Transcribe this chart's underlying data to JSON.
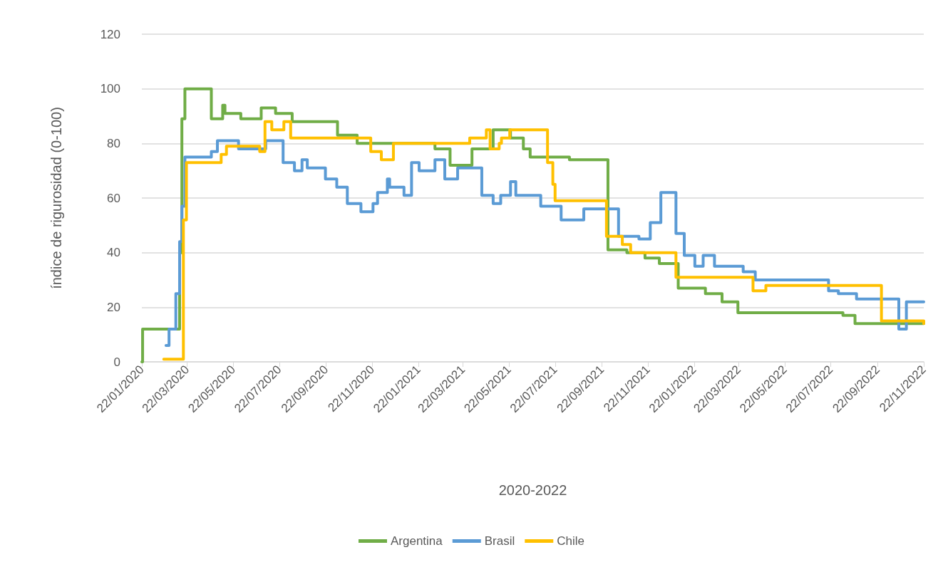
{
  "chart_data": {
    "type": "step",
    "xlabel": "2020-2022",
    "ylabel": "índice de rigurosidad (0-100)",
    "ylim": [
      0,
      120
    ],
    "yticks": [
      0,
      20,
      40,
      60,
      80,
      100,
      120
    ],
    "xlim": [
      "2020-01-22",
      "2022-11-22"
    ],
    "xticks": [
      {
        "value": "2020-01-22",
        "label": "22/01/2020"
      },
      {
        "value": "2020-03-22",
        "label": "22/03/2020"
      },
      {
        "value": "2020-05-22",
        "label": "22/05/2020"
      },
      {
        "value": "2020-07-22",
        "label": "22/07/2020"
      },
      {
        "value": "2020-09-22",
        "label": "22/09/2020"
      },
      {
        "value": "2020-11-22",
        "label": "22/11/2020"
      },
      {
        "value": "2021-01-22",
        "label": "22/01/2021"
      },
      {
        "value": "2021-03-22",
        "label": "22/03/2021"
      },
      {
        "value": "2021-05-22",
        "label": "22/05/2021"
      },
      {
        "value": "2021-07-22",
        "label": "22/07/2021"
      },
      {
        "value": "2021-09-22",
        "label": "22/09/2021"
      },
      {
        "value": "2021-11-22",
        "label": "22/11/2021"
      },
      {
        "value": "2022-01-22",
        "label": "22/01/2022"
      },
      {
        "value": "2022-03-22",
        "label": "22/03/2022"
      },
      {
        "value": "2022-05-22",
        "label": "22/05/2022"
      },
      {
        "value": "2022-07-22",
        "label": "22/07/2022"
      },
      {
        "value": "2022-09-22",
        "label": "22/09/2022"
      },
      {
        "value": "2022-11-22",
        "label": "22/11/2022"
      }
    ],
    "grid": "y",
    "legend": "bottom",
    "marker": "none",
    "line_style": "solid",
    "series": [
      {
        "name": "Argentina",
        "color": "#70ad47",
        "x": [
          "2020-01-22",
          "2020-01-23",
          "2020-03-12",
          "2020-03-15",
          "2020-03-19",
          "2020-04-23",
          "2020-05-08",
          "2020-05-11",
          "2020-06-01",
          "2020-06-28",
          "2020-07-17",
          "2020-08-08",
          "2020-10-07",
          "2020-11-02",
          "2021-02-13",
          "2021-03-05",
          "2021-04-03",
          "2021-05-01",
          "2021-05-24",
          "2021-06-10",
          "2021-06-19",
          "2021-08-10",
          "2021-09-30",
          "2021-10-25",
          "2021-11-18",
          "2021-12-07",
          "2022-01-01",
          "2022-02-06",
          "2022-02-28",
          "2022-03-21",
          "2022-08-07",
          "2022-08-23",
          "2022-11-22"
        ],
        "values": [
          0,
          12,
          40,
          89,
          100,
          89,
          94,
          91,
          89,
          93,
          91,
          88,
          83,
          80,
          78,
          72,
          78,
          85,
          82,
          78,
          75,
          74,
          41,
          40,
          38,
          36,
          27,
          25,
          22,
          18,
          17,
          14,
          14
        ]
      },
      {
        "name": "Brasil",
        "color": "#5b9bd5",
        "x": [
          "2020-02-23",
          "2020-02-27",
          "2020-03-07",
          "2020-03-12",
          "2020-03-15",
          "2020-03-19",
          "2020-04-23",
          "2020-05-01",
          "2020-05-29",
          "2020-07-04",
          "2020-07-27",
          "2020-08-11",
          "2020-08-21",
          "2020-08-28",
          "2020-09-21",
          "2020-10-06",
          "2020-10-20",
          "2020-11-07",
          "2020-11-23",
          "2020-11-29",
          "2020-12-12",
          "2020-12-15",
          "2021-01-03",
          "2021-01-13",
          "2021-01-23",
          "2021-02-13",
          "2021-02-26",
          "2021-03-15",
          "2021-04-16",
          "2021-05-01",
          "2021-05-11",
          "2021-05-24",
          "2021-05-31",
          "2021-07-03",
          "2021-07-30",
          "2021-08-29",
          "2021-10-14",
          "2021-11-10",
          "2021-11-25",
          "2021-12-09",
          "2021-12-29",
          "2022-01-09",
          "2022-01-23",
          "2022-02-03",
          "2022-02-18",
          "2022-03-28",
          "2022-04-13",
          "2022-07-19",
          "2022-08-01",
          "2022-08-25",
          "2022-10-20",
          "2022-10-30",
          "2022-11-22"
        ],
        "values": [
          6,
          12,
          25,
          44,
          57,
          75,
          77,
          81,
          78,
          81,
          73,
          70,
          74,
          71,
          67,
          64,
          58,
          55,
          58,
          62,
          67,
          64,
          61,
          73,
          70,
          74,
          67,
          71,
          61,
          58,
          61,
          66,
          61,
          57,
          52,
          56,
          46,
          45,
          51,
          62,
          47,
          39,
          35,
          39,
          35,
          33,
          30,
          26,
          25,
          23,
          12,
          22,
          22
        ]
      },
      {
        "name": "Chile",
        "color": "#ffc000",
        "x": [
          "2020-02-20",
          "2020-03-12",
          "2020-03-17",
          "2020-03-21",
          "2020-05-06",
          "2020-05-13",
          "2020-06-26",
          "2020-07-03",
          "2020-07-12",
          "2020-07-28",
          "2020-08-06",
          "2020-11-20",
          "2020-12-04",
          "2020-12-20",
          "2021-03-31",
          "2021-04-22",
          "2021-04-27",
          "2021-05-09",
          "2021-05-12",
          "2021-05-23",
          "2021-07-12",
          "2021-07-19",
          "2021-07-22",
          "2021-09-28",
          "2021-10-19",
          "2021-10-30",
          "2021-12-29",
          "2022-04-10",
          "2022-04-27",
          "2022-09-27",
          "2022-11-22"
        ],
        "values": [
          1,
          1,
          52,
          73,
          76,
          79,
          77,
          88,
          85,
          88,
          82,
          77,
          74,
          80,
          82,
          85,
          78,
          80,
          82,
          85,
          73,
          65,
          59,
          46,
          43,
          40,
          31,
          26,
          28,
          15,
          14
        ]
      }
    ]
  }
}
